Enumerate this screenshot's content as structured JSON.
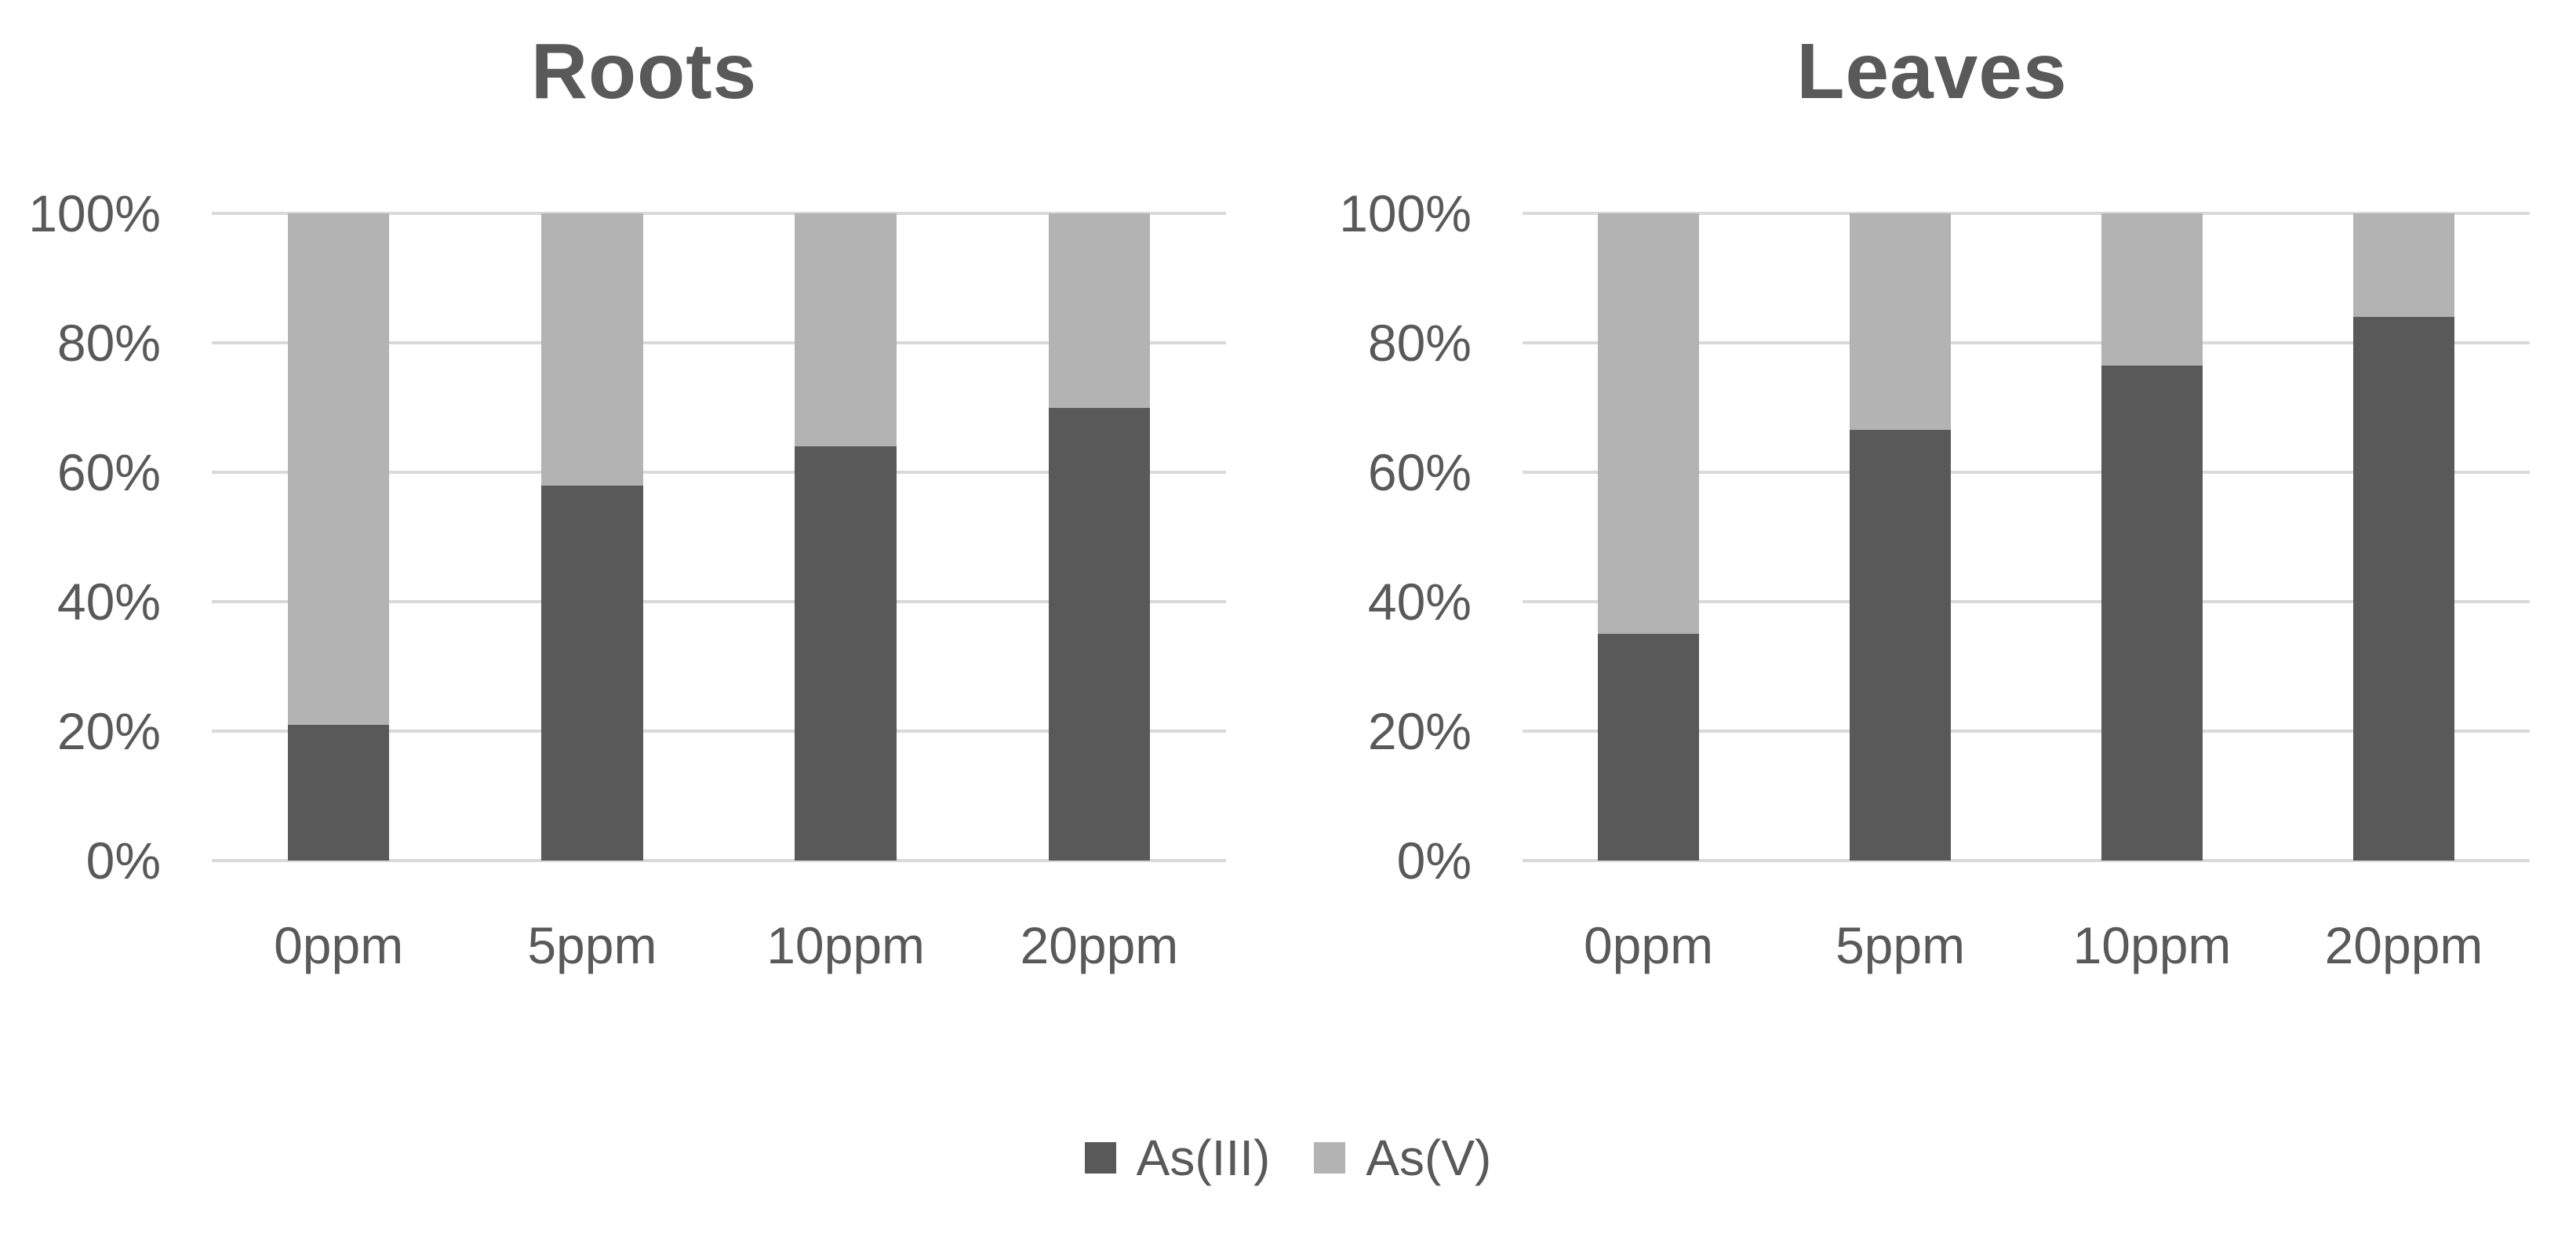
{
  "page": {
    "background": "#ffffff",
    "text_color": "#595959",
    "gridline_color": "#d9d9d9"
  },
  "legend": {
    "position": "bottom-center",
    "items": [
      {
        "label": "As(III)",
        "color": "#595959",
        "swatch": "square"
      },
      {
        "label": "As(V)",
        "color": "#b3b3b3",
        "swatch": "square"
      }
    ]
  },
  "chart_data": [
    {
      "type": "bar",
      "stacked": true,
      "title": "Roots",
      "categories": [
        "0ppm",
        "5ppm",
        "10ppm",
        "20ppm"
      ],
      "series": [
        {
          "name": "As(III)",
          "color": "#595959",
          "values": [
            21,
            58,
            64,
            70
          ]
        },
        {
          "name": "As(V)",
          "color": "#b3b3b3",
          "values": [
            79,
            42,
            36,
            30
          ]
        }
      ],
      "xlabel": "",
      "ylabel": "",
      "ylim": [
        0,
        100
      ],
      "yticks": [
        "0%",
        "20%",
        "40%",
        "60%",
        "80%",
        "100%"
      ],
      "grid": true,
      "units": "percent"
    },
    {
      "type": "bar",
      "stacked": true,
      "title": "Leaves",
      "categories": [
        "0ppm",
        "5ppm",
        "10ppm",
        "20ppm"
      ],
      "series": [
        {
          "name": "As(III)",
          "color": "#595959",
          "values": [
            35,
            66.5,
            76.5,
            84
          ]
        },
        {
          "name": "As(V)",
          "color": "#b3b3b3",
          "values": [
            65,
            33.5,
            23.5,
            16
          ]
        }
      ],
      "xlabel": "",
      "ylabel": "",
      "ylim": [
        0,
        100
      ],
      "yticks": [
        "0%",
        "20%",
        "40%",
        "60%",
        "80%",
        "100%"
      ],
      "grid": true,
      "units": "percent"
    }
  ]
}
